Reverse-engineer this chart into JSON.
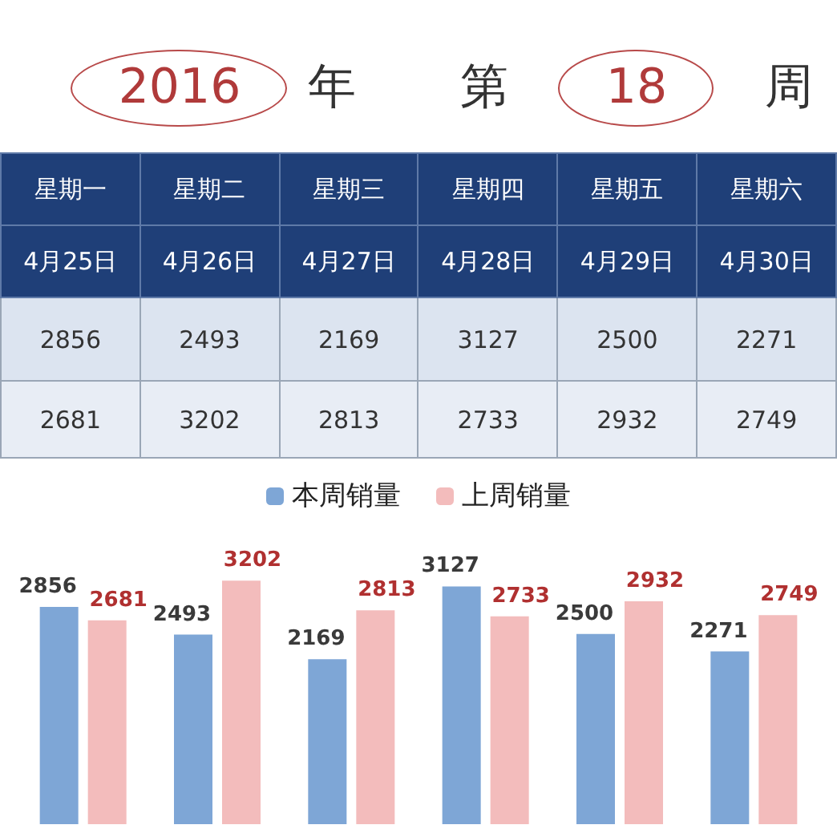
{
  "chart_data": [
    {
      "type": "other",
      "title": "2016 年 第 18 周",
      "categories": [
        "星期一",
        "星期二",
        "星期三",
        "星期四",
        "星期五",
        "星期六"
      ],
      "annotations": [
        "4月25日",
        "4月26日",
        "4月27日",
        "4月28日",
        "4月29日",
        "4月30日"
      ],
      "series": [
        {
          "values": [
            2856,
            2493,
            2169,
            3127,
            2500,
            2271
          ]
        },
        {
          "values": [
            2681,
            3202,
            2813,
            2733,
            2932,
            2749
          ]
        }
      ],
      "data_labels": true
    },
    {
      "type": "bar",
      "categories": [
        null,
        null,
        null,
        null,
        null,
        null
      ],
      "series": [
        {
          "name": "本周销量",
          "color": "#7ea6d6",
          "values": [
            2856,
            2493,
            2169,
            3127,
            2500,
            2271
          ],
          "value_labels": [
            "2856",
            "2493",
            "2169",
            "3127",
            "2500",
            "2271"
          ]
        },
        {
          "name": "上周销量",
          "color": "#f3bcbc",
          "values": [
            2681,
            3202,
            2813,
            2733,
            2932,
            2749
          ],
          "value_labels": [
            "2681",
            "3202",
            "2813",
            "2733",
            "2932",
            "2749"
          ]
        }
      ],
      "legend": "top",
      "grid": false
    }
  ]
}
